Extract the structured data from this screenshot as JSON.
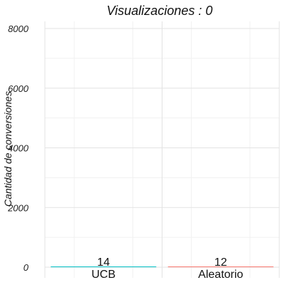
{
  "chart_data": {
    "type": "bar",
    "title": "Visualizaciones : 0",
    "xlabel": "",
    "ylabel": "Cantidad de conversiones",
    "categories": [
      "UCB",
      "Aleatorio"
    ],
    "values": [
      14,
      12
    ],
    "data_labels": [
      "14",
      "12"
    ],
    "colors": [
      "#00BFC4",
      "#F8766D"
    ],
    "ylim": [
      0,
      8200
    ],
    "yticks": [
      0,
      2000,
      4000,
      6000,
      8000
    ],
    "ytick_labels": [
      "0",
      "2000",
      "4000",
      "6000",
      "8000"
    ],
    "grid": true,
    "legend": "none"
  }
}
